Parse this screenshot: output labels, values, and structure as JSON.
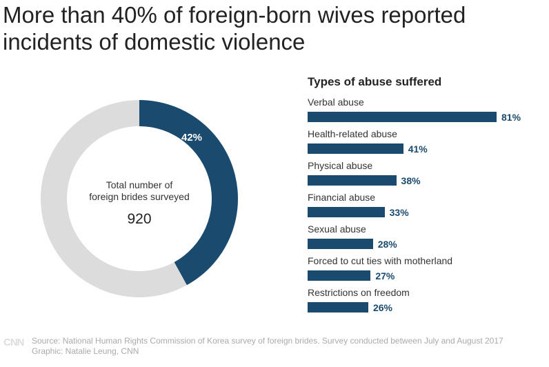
{
  "title": "More than 40% of foreign-born wives reported incidents of domestic violence",
  "chart_data": [
    {
      "type": "pie",
      "variant": "donut",
      "slices": [
        {
          "label": "42%",
          "value": 42,
          "color": "#1a4a6e"
        },
        {
          "value": 58,
          "color": "#dcdcdc"
        }
      ],
      "center_label": "Total number of foreign brides surveyed",
      "center_value": "920"
    },
    {
      "type": "bar",
      "orientation": "horizontal",
      "title": "Types of abuse suffered",
      "categories": [
        "Verbal abuse",
        "Health-related abuse",
        "Physical abuse",
        "Financial abuse",
        "Sexual abuse",
        "Forced to cut ties with motherland",
        "Restrictions on freedom"
      ],
      "values": [
        81,
        41,
        38,
        33,
        28,
        27,
        26
      ],
      "labels": [
        "81%",
        "41%",
        "38%",
        "33%",
        "28%",
        "27%",
        "26%"
      ],
      "color": "#1a4a6e",
      "grid": false
    }
  ],
  "footer": {
    "logo": "CNN",
    "source": "Source: National Human Rights Commission of Korea survey of foreign brides. Survey conducted between July and August 2017",
    "credit": "Graphic: Natalie Leung, CNN"
  }
}
